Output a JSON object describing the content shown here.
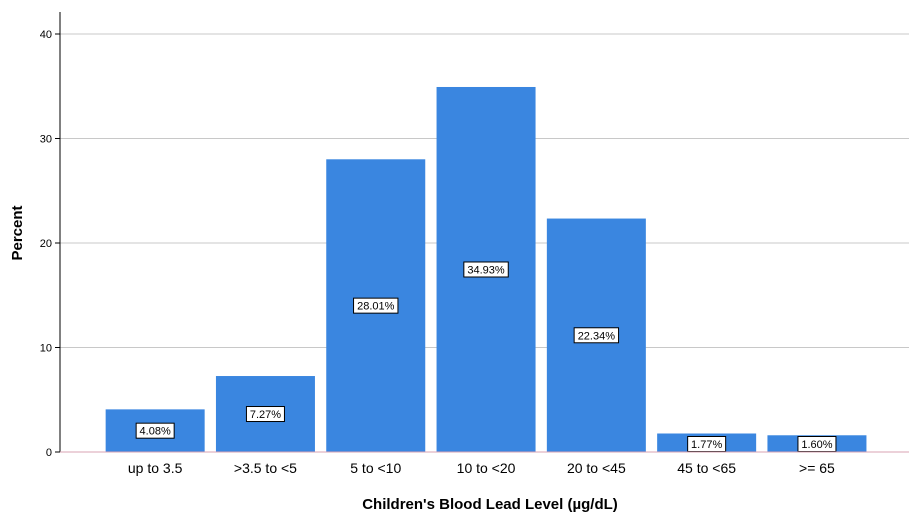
{
  "chart_data": {
    "type": "bar",
    "categories": [
      "up to 3.5",
      ">3.5 to <5",
      "5 to <10",
      "10 to <20",
      "20 to <45",
      "45 to <65",
      ">= 65"
    ],
    "values": [
      4.08,
      7.27,
      28.01,
      34.93,
      22.34,
      1.77,
      1.6
    ],
    "data_labels": [
      "4.08%",
      "7.27%",
      "28.01%",
      "34.93%",
      "22.34%",
      "1.77%",
      "1.60%"
    ],
    "xlabel": "Children's Blood Lead Level (µg/dL)",
    "ylabel": "Percent",
    "ylim": [
      0,
      40
    ],
    "yticks": [
      0,
      10,
      20,
      30,
      40
    ],
    "grid": "horizontal",
    "bar_color": "#3a86e0"
  }
}
